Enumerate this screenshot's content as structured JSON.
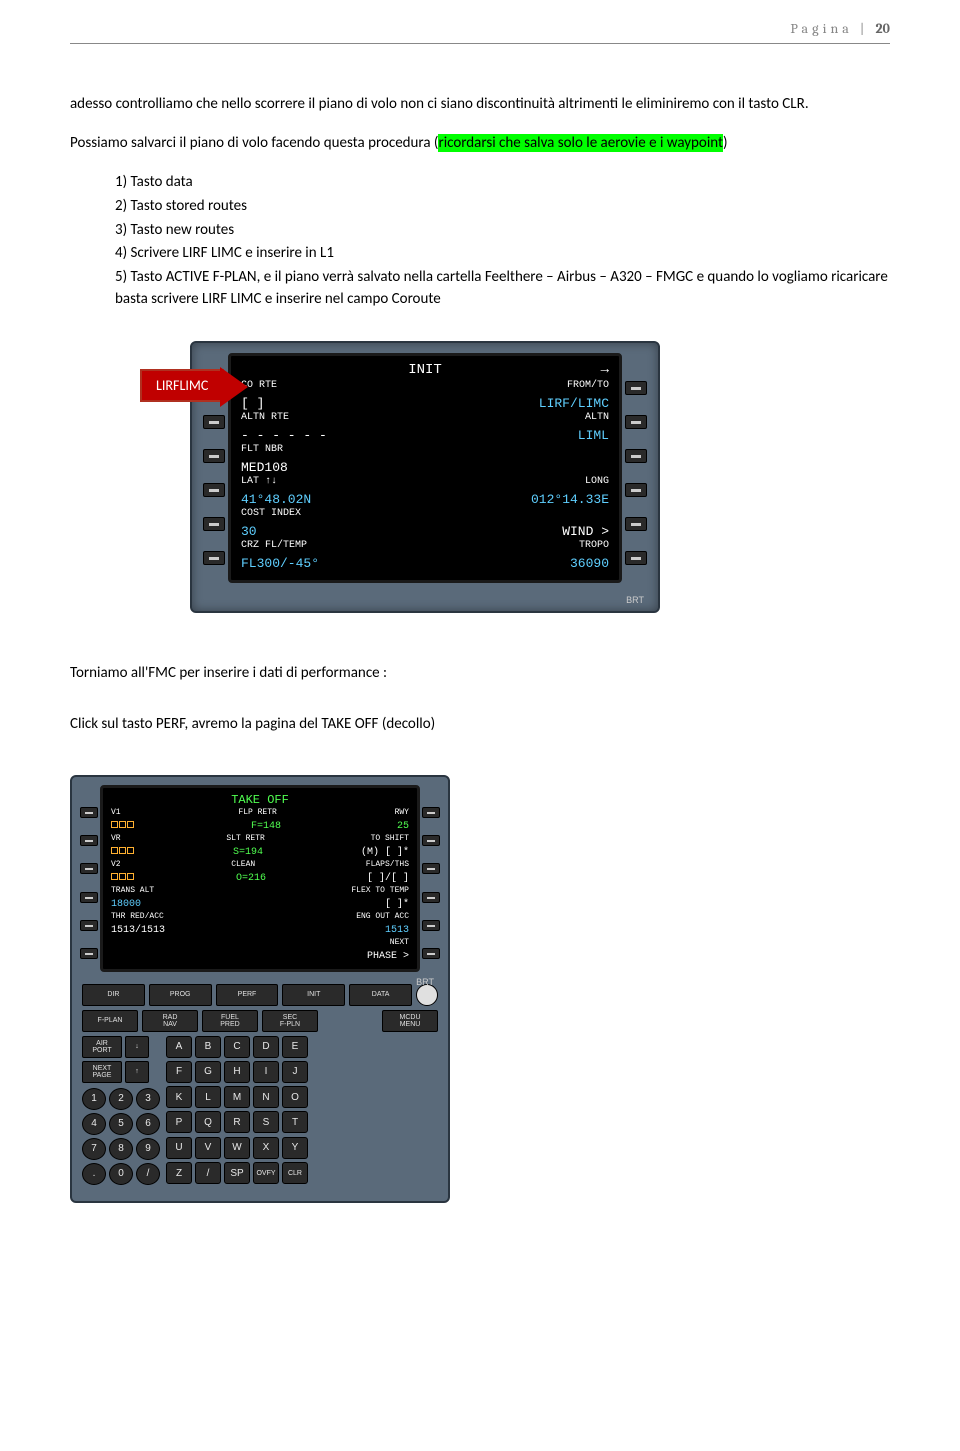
{
  "header": {
    "label": "Pagina",
    "number": "20"
  },
  "para1": "adesso controlliamo che nello scorrere il piano di volo non ci siano discontinuità altrimenti le eliminiremo con il tasto CLR.",
  "para2_prefix": "Possiamo  salvarci il piano di volo facendo questa procedura (",
  "para2_highlight": "ricordarsi che salva solo le aerovie e i  waypoint",
  "para2_suffix": ")",
  "list": [
    "Tasto data",
    "Tasto stored routes",
    "Tasto new routes",
    "Scrivere LIRF LIMC e inserire in L1",
    "Tasto ACTIVE F-PLAN, e il piano verrà salvato nella cartella Feelthere – Airbus – A320 – FMGC e quando lo vogliamo ricaricare basta scrivere LIRF LIMC e inserire nel campo Coroute"
  ],
  "arrow_label": "LIRFLIMC",
  "fmc_init": {
    "title": "INIT",
    "rows": [
      {
        "ll": "CO RTE",
        "lv": "[        ]",
        "rl": "FROM/TO",
        "rv": "LIRF/LIMC",
        "rvc": "cyan"
      },
      {
        "ll": "ALTN RTE",
        "lv": "- - - - - -",
        "rl": "ALTN",
        "rv": "LIML",
        "rvc": "cyan"
      },
      {
        "ll": "FLT NBR",
        "lv": "MED108",
        "rl": "",
        "rv": ""
      },
      {
        "ll": "LAT ↑↓",
        "lv": "41°48.02N",
        "lvc": "cyan",
        "rl": "LONG",
        "rv": "012°14.33E",
        "rvc": "cyan"
      },
      {
        "ll": "COST INDEX",
        "lv": "30",
        "lvc": "cyan",
        "rl": "",
        "rv": "WIND >",
        "rvc": "white"
      },
      {
        "ll": "CRZ FL/TEMP",
        "lv": "FL300/-45°",
        "lvc": "cyan",
        "rl": "TROPO",
        "rv": "36090",
        "rvc": "cyan"
      }
    ],
    "brt": "BRT"
  },
  "para3": "Torniamo all'FMC per inserire i dati di performance :",
  "para4": "Click sul tasto PERF, avremo la pagina del TAKE OFF (decollo)",
  "takeoff": {
    "title": "TAKE OFF",
    "rows": [
      {
        "ll": "V1",
        "lv_box": true,
        "cl": "FLP RETR",
        "cv": "F=148",
        "cvc": "green",
        "rl": "RWY",
        "rv": "25",
        "rvc": "green"
      },
      {
        "ll": "VR",
        "lv_box": true,
        "cl": "SLT RETR",
        "cv": "S=194",
        "cvc": "green",
        "rl": "TO SHIFT",
        "rv": "(M) [      ]*"
      },
      {
        "ll": "V2",
        "lv_box": true,
        "cl": "CLEAN",
        "cv": "O=216",
        "cvc": "green",
        "rl": "FLAPS/THS",
        "rv": "[   ]/[   ]"
      },
      {
        "ll": "TRANS ALT",
        "lv": "18000",
        "lvc": "cyan",
        "cl": "",
        "cv": "",
        "rl": "FLEX TO TEMP",
        "rv": "[      ]*"
      },
      {
        "ll": "THR RED/ACC",
        "lv": "1513/1513",
        "cl": "",
        "cv": "",
        "rl": "ENG OUT ACC",
        "rv": "1513",
        "rvc": "cyan"
      },
      {
        "ll": "",
        "lv": "",
        "cl": "",
        "cv": "",
        "rl": "NEXT",
        "rv": "PHASE >"
      }
    ],
    "brt": "BRT",
    "func_rows": [
      [
        "DIR",
        "PROG",
        "PERF",
        "INIT",
        "DATA",
        ""
      ],
      [
        "F-PLAN",
        "RAD\nNAV",
        "FUEL\nPRED",
        "SEC\nF-PLN",
        "",
        "MCDU\nMENU"
      ],
      [
        "AIR\nPORT",
        "↓",
        "",
        "",
        "",
        ""
      ],
      [
        "NEXT\nPAGE",
        "↑"
      ]
    ],
    "alpha": [
      "A",
      "B",
      "C",
      "D",
      "E",
      "F",
      "G",
      "H",
      "I",
      "J",
      "K",
      "L",
      "M",
      "N",
      "O",
      "P",
      "Q",
      "R",
      "S",
      "T",
      "U",
      "V",
      "W",
      "X",
      "Y",
      "Z",
      "/",
      "SP",
      "OVFY",
      "CLR"
    ],
    "num": [
      "1",
      "2",
      "3",
      "4",
      "5",
      "6",
      "7",
      "8",
      "9",
      ".",
      "0",
      "/"
    ]
  }
}
